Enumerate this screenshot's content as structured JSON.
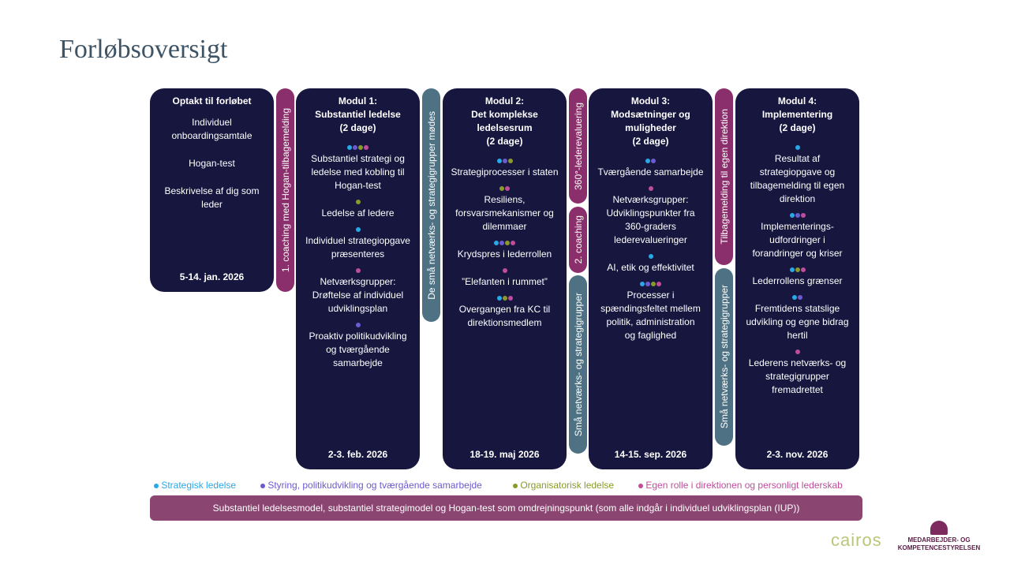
{
  "title": "Forløbsoversigt",
  "colors": {
    "b": "#29a8e8",
    "p": "#6b5bd0",
    "g": "#8a9a2a",
    "k": "#c04d9c",
    "box": "#16163f",
    "purple_bar": "#8b2f6c",
    "teal_bar": "#4e7284",
    "bottom_bar": "#8a4571"
  },
  "boxes": [
    {
      "head": "Optakt til forløbet",
      "items": [
        {
          "dots": [],
          "text": "Individuel\nonboardingsamtale"
        },
        {
          "dots": [],
          "text": "Hogan-test"
        },
        {
          "dots": [],
          "text": "Beskrivelse af dig som\nleder"
        }
      ],
      "date": "5-14. jan. 2026"
    },
    {
      "head": "Modul 1:\nSubstantiel ledelse\n(2 dage)",
      "items": [
        {
          "dots": [
            "b",
            "p",
            "g",
            "k"
          ],
          "text": "Substantiel strategi og\nledelse med kobling til\nHogan-test"
        },
        {
          "dots": [
            "g"
          ],
          "text": "Ledelse af ledere"
        },
        {
          "dots": [
            "b"
          ],
          "text": "Individuel strategiopgave\npræsenteres"
        },
        {
          "dots": [
            "k"
          ],
          "text": "Netværksgrupper:\nDrøftelse af individuel\nudviklingsplan"
        },
        {
          "dots": [
            "p"
          ],
          "text": "Proaktiv politikudvikling\nog tværgående\nsamarbejde"
        }
      ],
      "date": "2-3. feb. 2026"
    },
    {
      "head": "Modul 2:\nDet komplekse\nledelsesrum\n(2 dage)",
      "items": [
        {
          "dots": [
            "b",
            "p",
            "g"
          ],
          "text": "Strategiprocesser i staten"
        },
        {
          "dots": [
            "g",
            "k"
          ],
          "text": "Resiliens,\nforsvarsmekanismer og\ndilemmaer"
        },
        {
          "dots": [
            "b",
            "p",
            "g",
            "k"
          ],
          "text": "Krydspres i lederrollen"
        },
        {
          "dots": [
            "k"
          ],
          "text": "”Elefanten i rummet”"
        },
        {
          "dots": [
            "b",
            "g",
            "k"
          ],
          "text": "Overgangen fra KC til\ndirektionsmedlem"
        }
      ],
      "date": "18-19. maj 2026"
    },
    {
      "head": "Modul 3:\nModsætninger og\nmuligheder\n(2 dage)",
      "items": [
        {
          "dots": [
            "b",
            "p"
          ],
          "text": "Tværgående samarbejde"
        },
        {
          "dots": [
            "k"
          ],
          "text": "Netværksgrupper:\nUdviklingspunkter fra\n360-graders\nlederevalueringer"
        },
        {
          "dots": [
            "b"
          ],
          "text": "AI, etik og effektivitet"
        },
        {
          "dots": [
            "b",
            "p",
            "g",
            "k"
          ],
          "text": "Processer i\nspændingsfeltet mellem\npolitik, administration\nog faglighed"
        }
      ],
      "date": "14-15. sep. 2026"
    },
    {
      "head": "Modul 4:\nImplementering\n(2 dage)",
      "items": [
        {
          "dots": [
            "b"
          ],
          "text": "Resultat af\nstrategiopgave og\ntilbagemelding til egen\ndirektion"
        },
        {
          "dots": [
            "b",
            "p",
            "k"
          ],
          "text": "Implementerings-\nudfordringer i\nforandringer og kriser"
        },
        {
          "dots": [
            "b",
            "g",
            "k"
          ],
          "text": "Lederrollens grænser"
        },
        {
          "dots": [
            "b",
            "p"
          ],
          "text": "Fremtidens statslige\nudvikling og egne bidrag\nhertil"
        },
        {
          "dots": [
            "k"
          ],
          "text": "Lederens netværks- og\nstrategigrupper\nfremadrettet"
        }
      ],
      "date": "2-3. nov. 2026"
    }
  ],
  "bars": {
    "coaching1": "1. coaching med Hogan-tilbagemelding",
    "small_groups_meet": "De små netværks- og strategigrupper mødes",
    "evaluation360": "360°-lederevaluering",
    "coaching2": "2. coaching",
    "small_groups_a": "Små netværks- og strategigrupper",
    "feedback_direction": "Tilbagemelding til egen direktion",
    "small_groups_b": "Små netværks- og strategigrupper"
  },
  "legend": [
    {
      "color": "b",
      "label": "Strategisk ledelse"
    },
    {
      "color": "p",
      "label": "Styring, politikudvikling og tværgående samarbejde"
    },
    {
      "color": "g",
      "label": "Organisatorisk ledelse"
    },
    {
      "color": "k",
      "label": "Egen rolle i direktionen og personligt lederskab"
    }
  ],
  "bottom_bar": "Substantiel ledelsesmodel, substantiel strategimodel og Hogan-test som omdrejningspunkt (som alle indgår i individuel udviklingsplan (IUP))",
  "logos": {
    "cairos": "cairos",
    "agency": "Medarbejder- og Kompetencestyrelsen"
  }
}
